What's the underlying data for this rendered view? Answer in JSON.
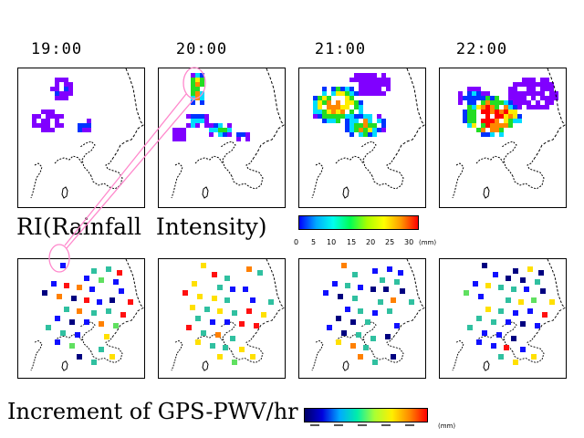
{
  "times": [
    "19:00",
    "20:00",
    "21:00",
    "22:00"
  ],
  "ri_title": "RI(Rainfall  Intensity)",
  "pwv_title": "Increment of GPS-PWV/hr",
  "ri_colorbar": {
    "ticks": [
      "0",
      "5",
      "10",
      "15",
      "20",
      "25",
      "30"
    ],
    "unit": "(mm)",
    "colors": [
      "#0000ff",
      "#00aaff",
      "#00ffee",
      "#00ff55",
      "#aaff00",
      "#ffff00",
      "#ff9900",
      "#ff0000"
    ]
  },
  "pwv_colorbar": {
    "ticks": [
      "",
      "",
      "",
      "",
      ""
    ],
    "unit": "(mm)",
    "colors": [
      "#000066",
      "#0000dd",
      "#00aaff",
      "#00eeaa",
      "#aaff33",
      "#ffee00",
      "#ff8800",
      "#ff0000"
    ]
  },
  "rain_colors": {
    "light": "#8000ff",
    "blue": "#0033ff",
    "cyan": "#00ddff",
    "green": "#22dd22",
    "yellow": "#ffee00",
    "orange": "#ff8800",
    "red": "#ff0000"
  },
  "station_colors": {
    "navy": "#000080",
    "blue": "#1010ff",
    "teal": "#30c0a0",
    "green": "#60e060",
    "yellow": "#ffe000",
    "orange": "#ff8000",
    "red": "#ff1010"
  }
}
